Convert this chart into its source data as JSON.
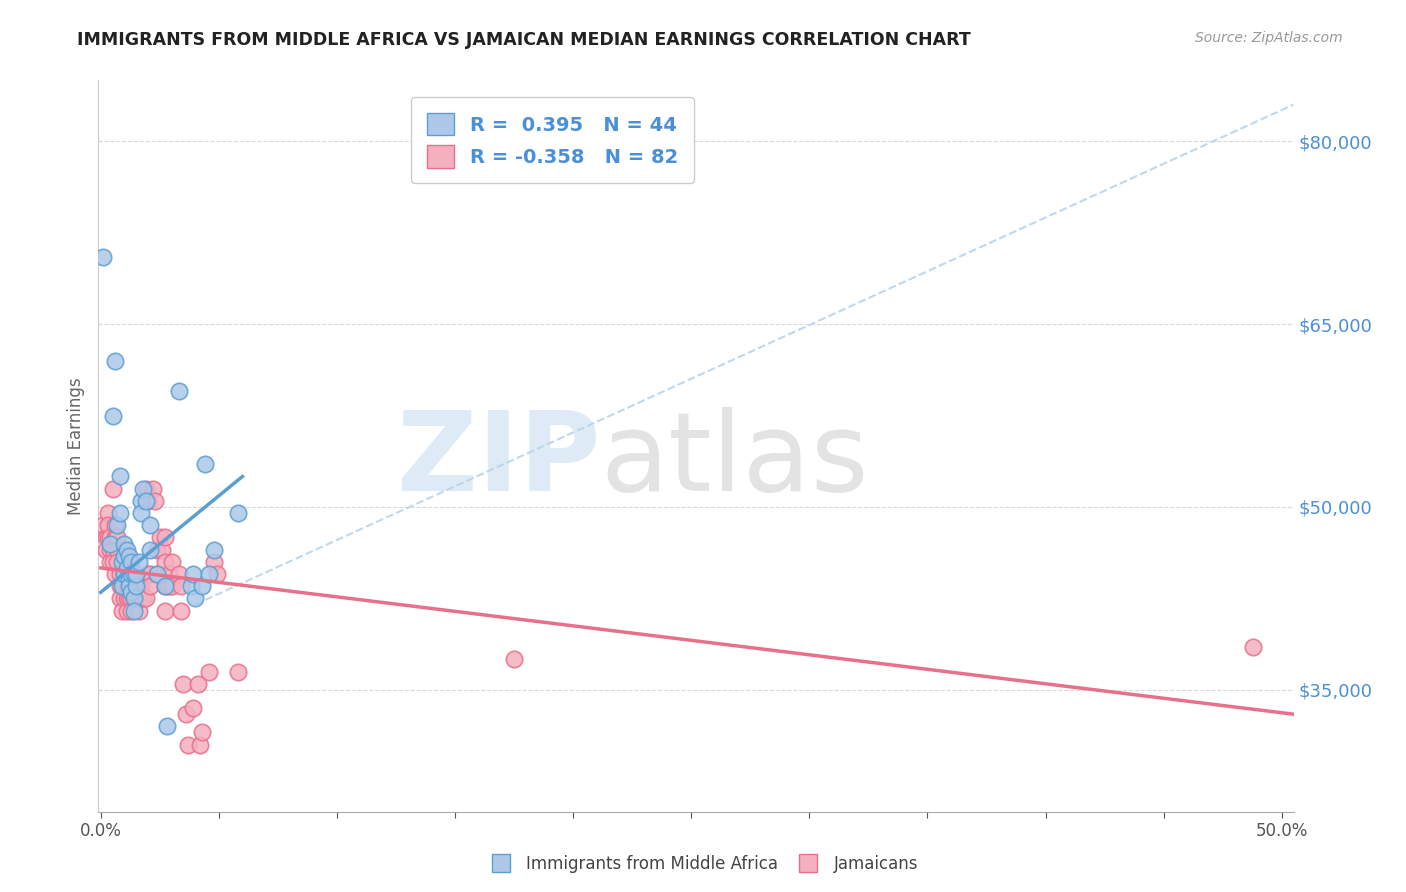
{
  "title": "IMMIGRANTS FROM MIDDLE AFRICA VS JAMAICAN MEDIAN EARNINGS CORRELATION CHART",
  "source": "Source: ZipAtlas.com",
  "ylabel": "Median Earnings",
  "y_ticks": [
    35000,
    50000,
    65000,
    80000
  ],
  "y_tick_labels": [
    "$35,000",
    "$50,000",
    "$65,000",
    "$80,000"
  ],
  "y_min": 25000,
  "y_max": 85000,
  "x_min": -0.001,
  "x_max": 0.505,
  "color_blue": "#adc8e8",
  "color_pink": "#f5b0c0",
  "line_blue": "#5a9fd4",
  "line_pink": "#e8708a",
  "line_dashed_color": "#b8d4ea",
  "watermark_zip": "ZIP",
  "watermark_atlas": "atlas",
  "blue_points": [
    [
      0.001,
      70500
    ],
    [
      0.004,
      47000
    ],
    [
      0.005,
      57500
    ],
    [
      0.006,
      62000
    ],
    [
      0.007,
      48500
    ],
    [
      0.008,
      52500
    ],
    [
      0.008,
      49500
    ],
    [
      0.009,
      45500
    ],
    [
      0.009,
      43500
    ],
    [
      0.01,
      47000
    ],
    [
      0.01,
      46000
    ],
    [
      0.01,
      44500
    ],
    [
      0.011,
      46500
    ],
    [
      0.011,
      45000
    ],
    [
      0.012,
      44000
    ],
    [
      0.012,
      46000
    ],
    [
      0.012,
      43500
    ],
    [
      0.013,
      45500
    ],
    [
      0.013,
      44500
    ],
    [
      0.013,
      43000
    ],
    [
      0.014,
      44500
    ],
    [
      0.014,
      42500
    ],
    [
      0.014,
      41500
    ],
    [
      0.015,
      43500
    ],
    [
      0.015,
      44500
    ],
    [
      0.016,
      45500
    ],
    [
      0.017,
      50500
    ],
    [
      0.017,
      49500
    ],
    [
      0.018,
      51500
    ],
    [
      0.019,
      50500
    ],
    [
      0.021,
      48500
    ],
    [
      0.021,
      46500
    ],
    [
      0.024,
      44500
    ],
    [
      0.027,
      43500
    ],
    [
      0.028,
      32000
    ],
    [
      0.033,
      59500
    ],
    [
      0.038,
      43500
    ],
    [
      0.039,
      44500
    ],
    [
      0.04,
      42500
    ],
    [
      0.043,
      43500
    ],
    [
      0.044,
      53500
    ],
    [
      0.046,
      44500
    ],
    [
      0.048,
      46500
    ],
    [
      0.058,
      49500
    ]
  ],
  "pink_points": [
    [
      0.001,
      48500
    ],
    [
      0.002,
      47500
    ],
    [
      0.002,
      46500
    ],
    [
      0.003,
      49500
    ],
    [
      0.003,
      47500
    ],
    [
      0.003,
      48500
    ],
    [
      0.004,
      46500
    ],
    [
      0.004,
      47500
    ],
    [
      0.004,
      45500
    ],
    [
      0.005,
      51500
    ],
    [
      0.005,
      46500
    ],
    [
      0.005,
      45500
    ],
    [
      0.006,
      48500
    ],
    [
      0.006,
      47500
    ],
    [
      0.006,
      44500
    ],
    [
      0.007,
      47500
    ],
    [
      0.007,
      46500
    ],
    [
      0.007,
      45500
    ],
    [
      0.008,
      43500
    ],
    [
      0.008,
      44500
    ],
    [
      0.008,
      42500
    ],
    [
      0.009,
      43500
    ],
    [
      0.009,
      41500
    ],
    [
      0.01,
      43500
    ],
    [
      0.01,
      44500
    ],
    [
      0.01,
      42500
    ],
    [
      0.011,
      43500
    ],
    [
      0.011,
      42500
    ],
    [
      0.011,
      41500
    ],
    [
      0.012,
      43500
    ],
    [
      0.012,
      44500
    ],
    [
      0.012,
      42500
    ],
    [
      0.013,
      42500
    ],
    [
      0.013,
      41500
    ],
    [
      0.014,
      43500
    ],
    [
      0.014,
      42500
    ],
    [
      0.015,
      43500
    ],
    [
      0.015,
      42500
    ],
    [
      0.016,
      43500
    ],
    [
      0.016,
      41500
    ],
    [
      0.017,
      43500
    ],
    [
      0.017,
      42500
    ],
    [
      0.018,
      42500
    ],
    [
      0.019,
      42500
    ],
    [
      0.019,
      51500
    ],
    [
      0.02,
      50500
    ],
    [
      0.02,
      44500
    ],
    [
      0.021,
      44500
    ],
    [
      0.021,
      43500
    ],
    [
      0.022,
      51500
    ],
    [
      0.023,
      50500
    ],
    [
      0.024,
      46500
    ],
    [
      0.024,
      44500
    ],
    [
      0.025,
      47500
    ],
    [
      0.026,
      46500
    ],
    [
      0.027,
      47500
    ],
    [
      0.027,
      45500
    ],
    [
      0.027,
      43500
    ],
    [
      0.027,
      41500
    ],
    [
      0.028,
      43500
    ],
    [
      0.029,
      44500
    ],
    [
      0.029,
      43500
    ],
    [
      0.03,
      45500
    ],
    [
      0.03,
      43500
    ],
    [
      0.033,
      44500
    ],
    [
      0.034,
      43500
    ],
    [
      0.034,
      41500
    ],
    [
      0.035,
      35500
    ],
    [
      0.036,
      33000
    ],
    [
      0.037,
      30500
    ],
    [
      0.039,
      33500
    ],
    [
      0.041,
      35500
    ],
    [
      0.042,
      30500
    ],
    [
      0.043,
      31500
    ],
    [
      0.046,
      36500
    ],
    [
      0.048,
      45500
    ],
    [
      0.049,
      44500
    ],
    [
      0.058,
      36500
    ],
    [
      0.175,
      37500
    ],
    [
      0.488,
      38500
    ]
  ],
  "blue_trend_x": [
    0.0,
    0.06
  ],
  "blue_trend_y": [
    43000,
    52500
  ],
  "pink_trend_x": [
    0.0,
    0.505
  ],
  "pink_trend_y": [
    45000,
    33000
  ],
  "dashed_trend_x": [
    0.04,
    0.505
  ],
  "dashed_trend_y": [
    42000,
    83000
  ]
}
